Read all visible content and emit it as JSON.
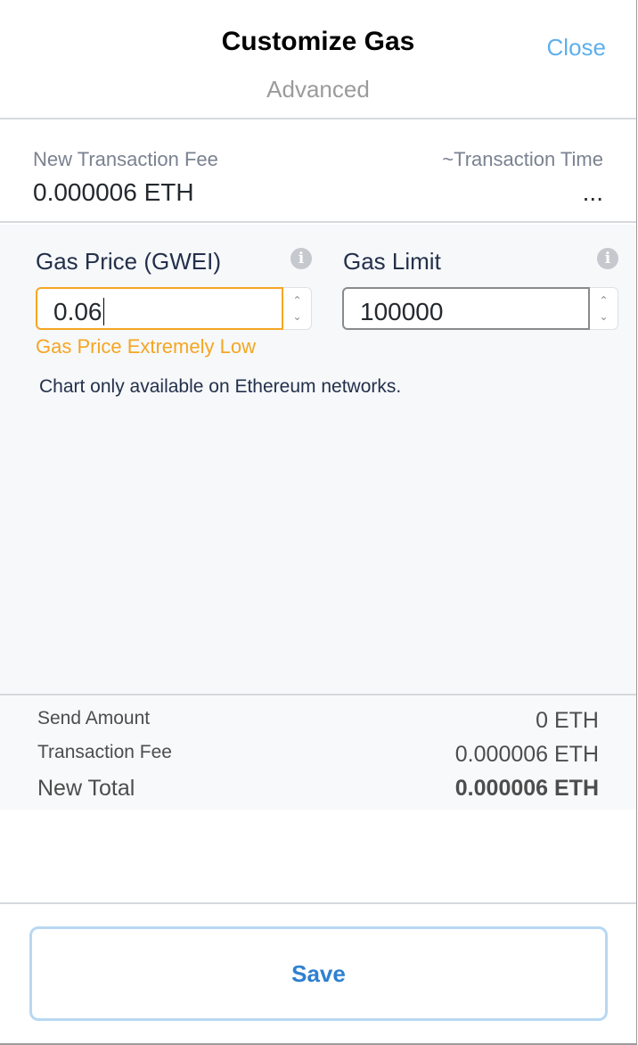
{
  "header": {
    "title": "Customize Gas",
    "subtitle": "Advanced",
    "close_label": "Close"
  },
  "fee": {
    "fee_label": "New Transaction Fee",
    "fee_value": "0.000006 ETH",
    "time_label": "~Transaction Time",
    "time_value": "..."
  },
  "inputs": {
    "gas_price": {
      "label": "Gas Price (GWEI)",
      "value": "0.06",
      "error": "Gas Price Extremely Low"
    },
    "gas_limit": {
      "label": "Gas Limit",
      "value": "100000"
    }
  },
  "chart_note": "Chart only available on Ethereum networks.",
  "totals": {
    "send_amount_label": "Send Amount",
    "send_amount_value": "0 ETH",
    "fee_label": "Transaction Fee",
    "fee_value": "0.000006 ETH",
    "total_label": "New Total",
    "total_value": "0.000006 ETH"
  },
  "footer": {
    "save_label": "Save"
  },
  "colors": {
    "accent": "#5eb0ec",
    "warning": "#f5a623",
    "save_text": "#2f80d1"
  }
}
